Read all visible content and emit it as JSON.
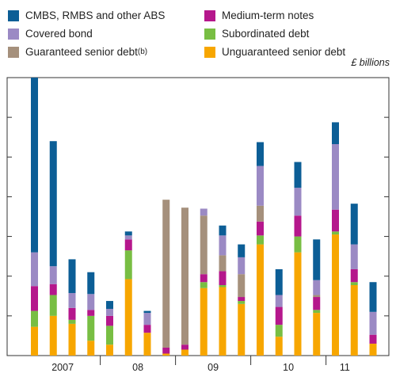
{
  "chart_data": {
    "type": "bar",
    "stacked": true,
    "title": "",
    "units": "£ billions",
    "xlabel": "",
    "ylabel": "",
    "ylim": [
      0,
      140
    ],
    "y_major_step": 20,
    "grid": false,
    "legend_position": "top",
    "year_labels": [
      {
        "label": "2007",
        "center_index": 1.5
      },
      {
        "label": "08",
        "center_index": 5.5
      },
      {
        "label": "09",
        "center_index": 9.5
      },
      {
        "label": "10",
        "center_index": 13.5
      },
      {
        "label": "11",
        "center_index": 16.5
      }
    ],
    "year_separators_after_index": [
      3,
      7,
      11,
      15
    ],
    "series": [
      {
        "name": "Unguaranteed senior debt",
        "color": "#f7a600",
        "values": [
          14.5,
          20,
          16,
          7.5,
          5.5,
          38.5,
          11.5,
          1,
          3,
          34,
          34.5,
          26,
          56,
          9.5,
          52,
          21.5,
          61,
          35.5,
          6
        ]
      },
      {
        "name": "Guaranteed senior debt(b)",
        "color": "#a5907c",
        "values": [
          0,
          0,
          0,
          0,
          0,
          0,
          0,
          0,
          0,
          0,
          0,
          0,
          0,
          0,
          0,
          0,
          0,
          0,
          0
        ]
      },
      {
        "name": "Subordinated debt",
        "color": "#78be43",
        "values": [
          8,
          10.5,
          2,
          12.5,
          9.5,
          14.5,
          0,
          0,
          0,
          3,
          1,
          1.5,
          4.5,
          6,
          8,
          1.5,
          1.5,
          1.5,
          0
        ]
      },
      {
        "name": "Medium-term notes",
        "color": "#b5178c",
        "values": [
          12.5,
          5.5,
          6,
          3,
          5,
          5.5,
          4,
          3,
          2.5,
          4,
          7,
          2,
          7,
          9,
          10.5,
          6.5,
          11,
          6.5,
          4.5
        ]
      },
      {
        "name": "Guaranteed senior debt(b) ",
        "color": "#a5907c",
        "values": [
          0,
          0,
          0,
          0,
          0,
          0,
          0,
          74.5,
          69,
          29.5,
          8,
          11.5,
          8,
          0,
          0,
          1,
          0,
          0,
          0
        ]
      },
      {
        "name": "Covered bond",
        "color": "#9b8ac4",
        "values": [
          17,
          9,
          7.5,
          8,
          3.5,
          2,
          6,
          0,
          0,
          3.5,
          10,
          8.5,
          20,
          6,
          14,
          7.5,
          33,
          12.5,
          11.5
        ]
      },
      {
        "name": "CMBS, RMBS and other ABS",
        "color": "#0c5e96",
        "values": [
          88,
          63,
          17,
          11,
          4,
          2,
          1,
          0,
          0,
          0,
          5,
          6.5,
          12,
          13,
          13,
          20.5,
          11,
          20.5,
          15
        ]
      }
    ]
  },
  "legend": [
    {
      "label": "CMBS, RMBS and other ABS",
      "color": "#0c5e96"
    },
    {
      "label": "Medium-term notes",
      "color": "#b5178c"
    },
    {
      "label": "Covered bond",
      "color": "#9b8ac4"
    },
    {
      "label": "Subordinated debt",
      "color": "#78be43"
    },
    {
      "label": "Guaranteed senior debt",
      "sup": "(b)",
      "color": "#a5907c"
    },
    {
      "label": "Unguaranteed senior debt",
      "color": "#f7a600"
    }
  ]
}
